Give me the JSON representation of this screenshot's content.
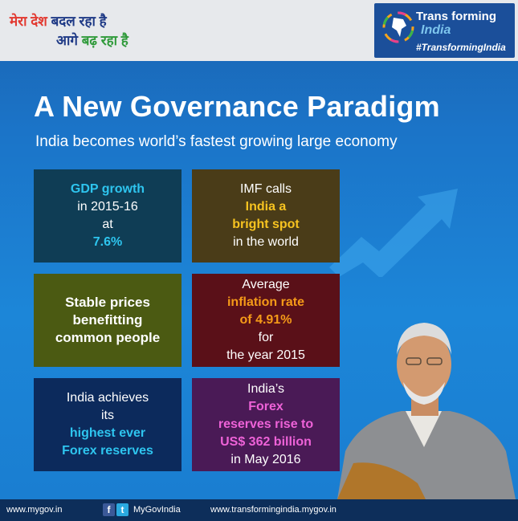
{
  "header": {
    "slogan_line1_a": "मेरा देश",
    "slogan_line1_b": "बदल रहा है",
    "slogan_line2_a": "आगे",
    "slogan_line2_b": "बढ़ रहा है",
    "logo_line1": "Trans  forming",
    "logo_line2": "India",
    "hashtag": "#TransformingIndia"
  },
  "title": "A New Governance Paradigm",
  "subtitle": "India becomes world’s fastest growing large economy",
  "cards": {
    "c1": {
      "l1": "GDP growth",
      "l2": "in 2015-16",
      "l3a": "at ",
      "l3b": "7.6%"
    },
    "c2": {
      "l1": "IMF calls",
      "l2": "India a",
      "l3": "bright spot",
      "l4": "in the world"
    },
    "c3": {
      "l1": "Stable prices",
      "l2": "benefitting",
      "l3": "common people"
    },
    "c4": {
      "l1": "Average",
      "l2": "inflation rate",
      "l3a": "of 4.91%",
      "l3b": " for",
      "l4": "the year 2015"
    },
    "c5": {
      "l1": "India achieves",
      "l2a": "its ",
      "l2b": "highest ever",
      "l3": "Forex reserves"
    },
    "c6": {
      "l1a": "India’s ",
      "l1b": "Forex",
      "l2": "reserves rise to",
      "l3": "US$ 362 billion",
      "l4": "in May 2016"
    }
  },
  "footer": {
    "site1": "www.mygov.in",
    "fb": "f",
    "tw": "t",
    "handle": "MyGovIndia",
    "site2": "www.transformingindia.mygov.in"
  },
  "colors": {
    "accent_cyan": "#2ec5ef",
    "accent_yellow": "#f7c320",
    "accent_orange": "#f59a18",
    "accent_pink": "#ee62d8"
  }
}
